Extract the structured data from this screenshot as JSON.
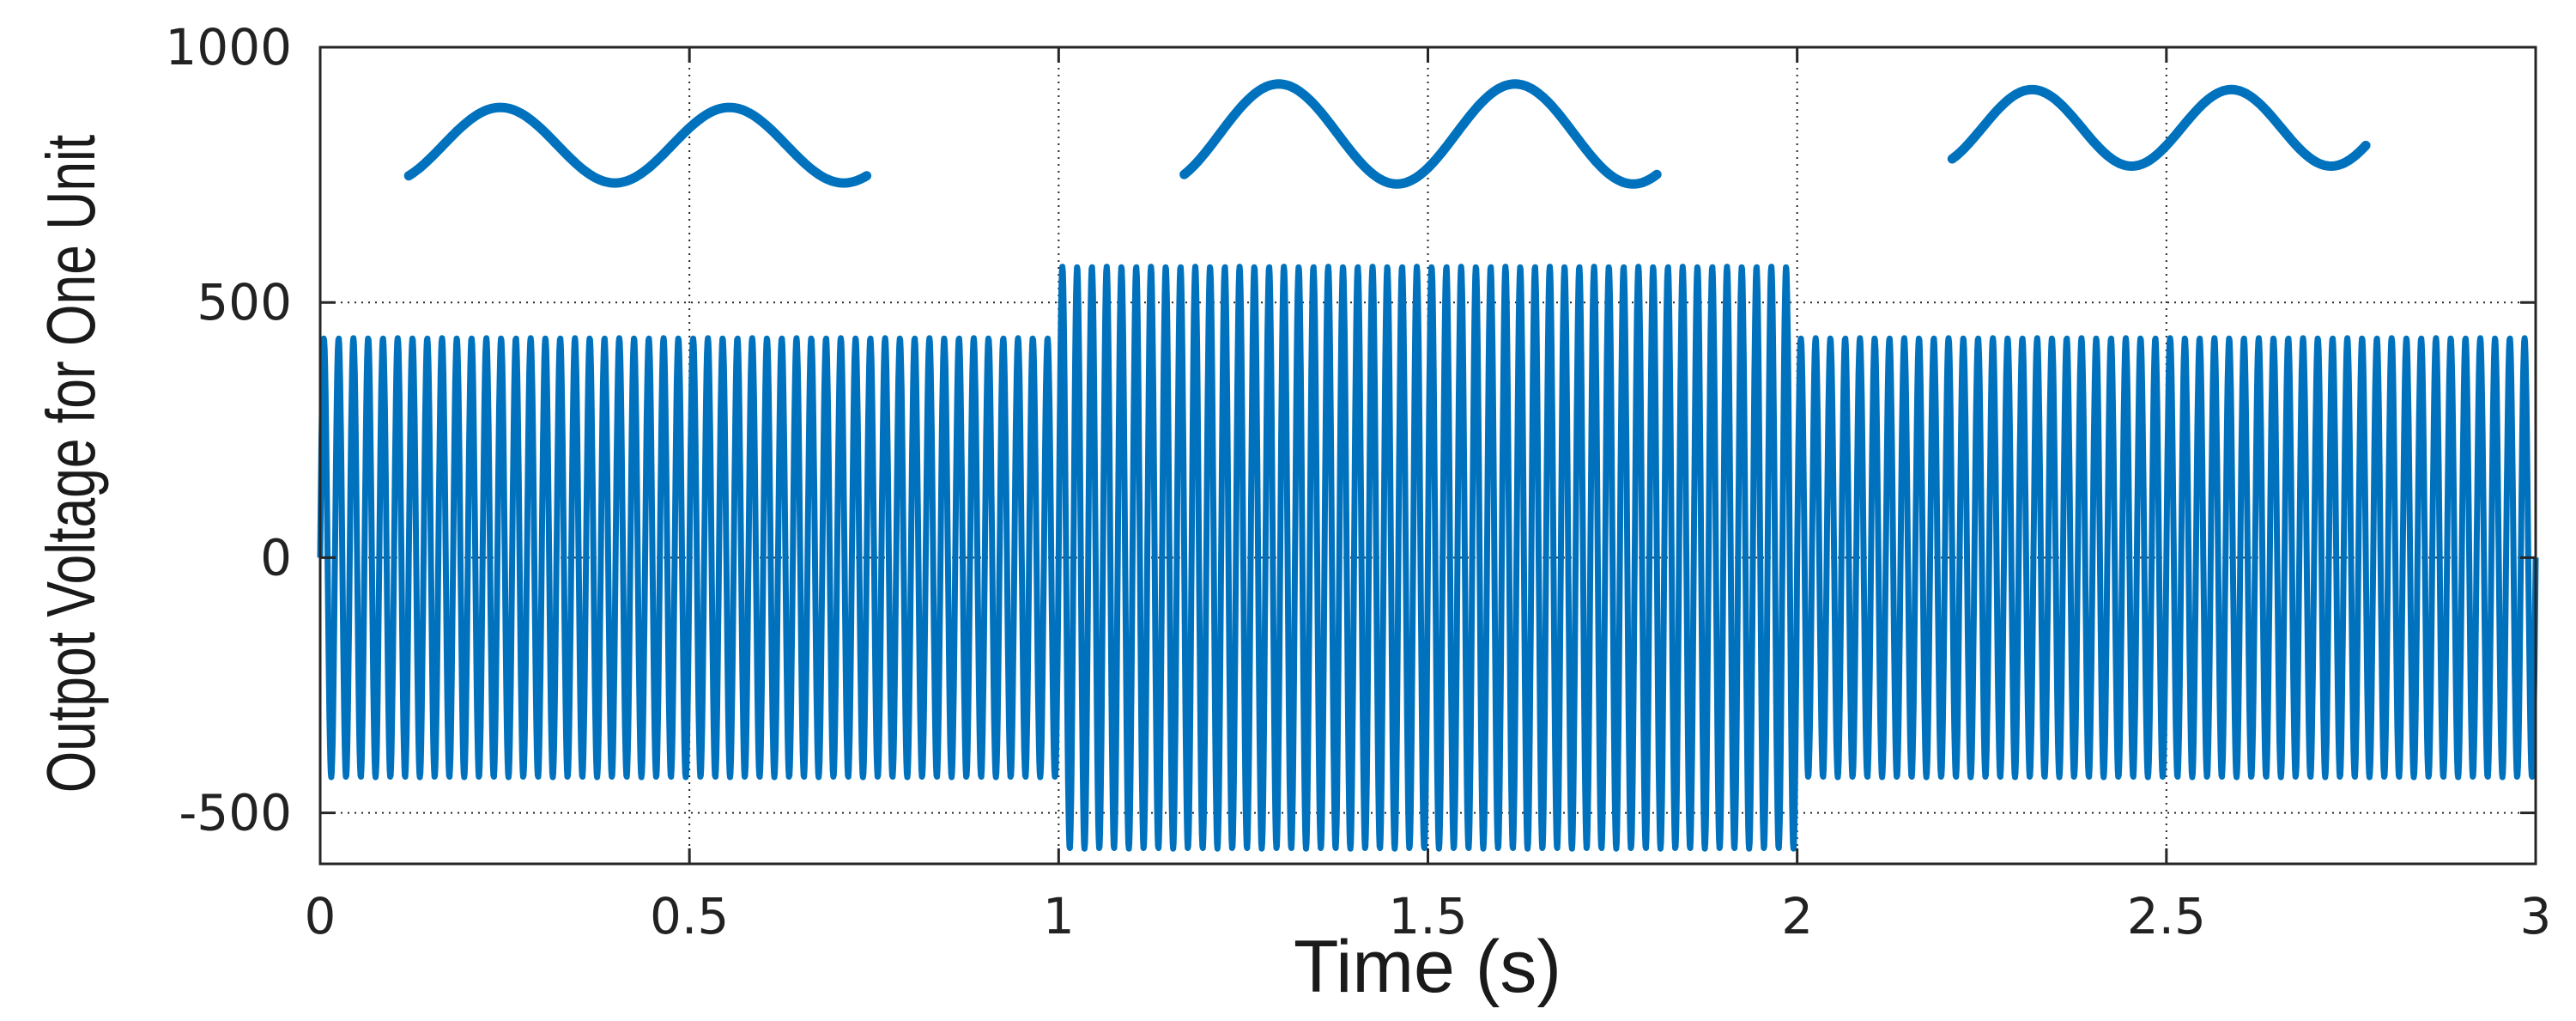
{
  "chart_data": {
    "type": "line",
    "title": "",
    "xlabel": "Time (s)",
    "ylabel": "Outpot Voltage for One Unit",
    "xlim": [
      0,
      3
    ],
    "ylim": [
      -600,
      1000
    ],
    "xticks": [
      0,
      0.5,
      1,
      1.5,
      2,
      2.5,
      3
    ],
    "xtick_labels": [
      "0",
      "0.5",
      "1",
      "1.5",
      "2",
      "2.5",
      "3"
    ],
    "yticks": [
      -500,
      0,
      500,
      1000
    ],
    "ytick_labels": [
      "-500",
      "0",
      "500",
      "1000"
    ],
    "grid": true,
    "legend": "none",
    "series": [
      {
        "color": "#0072BD",
        "frequency_hz": 50,
        "segments": [
          {
            "t_start": 0,
            "t_end": 1,
            "amplitude": 430
          },
          {
            "t_start": 1,
            "t_end": 2,
            "amplitude": 570
          },
          {
            "t_start": 2,
            "t_end": 3,
            "amplitude": 430
          }
        ]
      }
    ],
    "insets": [
      {
        "t_start": 0.12,
        "t_end": 0.74,
        "center": 808,
        "amplitude": 74,
        "period": 0.31
      },
      {
        "t_start": 1.17,
        "t_end": 1.81,
        "center": 830,
        "amplitude": 98,
        "period": 0.32
      },
      {
        "t_start": 2.21,
        "t_end": 2.77,
        "center": 842,
        "amplitude": 75,
        "period": 0.27
      }
    ]
  }
}
